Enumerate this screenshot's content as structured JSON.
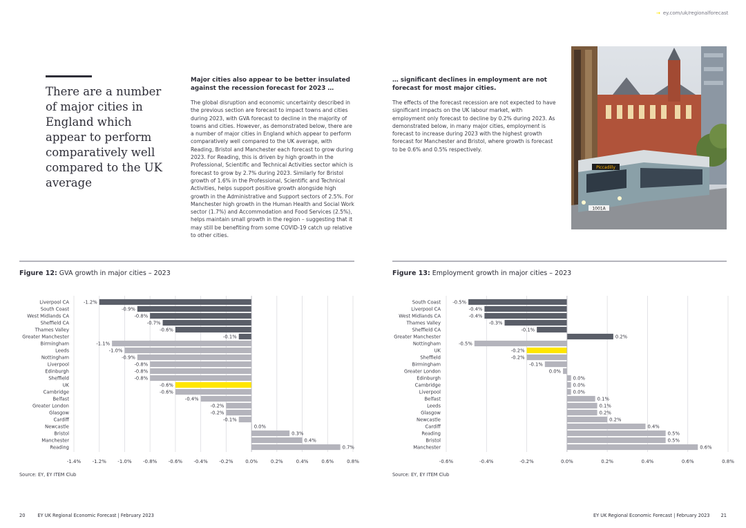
{
  "header": {
    "url": "ey.com/uk/regionalforecast"
  },
  "intro": {
    "quote": "There are a number of major cities in England which appear to perform comparatively well compared to the UK average"
  },
  "column1": {
    "heading": "Major cities also appear to be better insulated against the recession forecast for 2023 …",
    "body": "The global disruption and economic uncertainty described in the previous section are forecast to impact towns and cities during 2023, with GVA forecast to decline in the majority of towns and cities. However, as demonstrated below, there are a number of major cities in England which appear to perform comparatively well compared to the UK average, with Reading, Bristol and Manchester each forecast to grow during 2023. For Reading, this is driven by high growth in the Professional, Scientific and Technical Activities sector which is forecast to grow by 2.7% during 2023. Similarly for Bristol growth of 1.6% in the Professional, Scientific and Technical Activities, helps support positive growth alongside high growth in the Administrative and Support sectors of 2.5%. For Manchester high growth in the Human Health and Social Work sector (1.7%) and Accommodation and Food Services (2.5%), helps maintain small growth in the region – suggesting that it may still be benefiting from some COVID-19 catch up relative to other cities."
  },
  "column2": {
    "heading": "… significant declines in employment are not forecast for most major cities.",
    "body": "The effects of the forecast recession are not expected to have significant impacts on the UK labour market, with employment only forecast to decline by 0.2% during 2023. As demonstrated below, in many major cities, employment is forecast to increase during 2023 with the highest growth forecast for Manchester and Bristol, where growth is forecast to be 0.6% and 0.5% respectively."
  },
  "photo": {
    "tram_sign": "Piccadilly",
    "tram_number": "1001A"
  },
  "figures": {
    "fig12": {
      "label": "Figure 12:",
      "title": "GVA growth in major cities – 2023",
      "source": "Source: EY, EY ITEM Club"
    },
    "fig13": {
      "label": "Figure 13:",
      "title": "Employment growth in major cities – 2023",
      "source": "Source: EY, EY ITEM Club"
    }
  },
  "colors": {
    "dark_bar": "#5a5e68",
    "light_bar": "#b4b4bc",
    "highlight": "#ffe600",
    "accent": "#ffe600"
  },
  "chart_data": [
    {
      "type": "bar",
      "orientation": "horizontal",
      "title": "GVA growth in major cities – 2023",
      "categories": [
        "Liverpool CA",
        "South Coast",
        "West Midlands CA",
        "Sheffield CA",
        "Thames Valley",
        "Greater Manchester",
        "Birmingham",
        "Leeds",
        "Nottingham",
        "Liverpool",
        "Edinburgh",
        "Sheffield",
        "UK",
        "Cambridge",
        "Belfast",
        "Greater London",
        "Glasgow",
        "Cardiff",
        "Newcastle",
        "Bristol",
        "Manchester",
        "Reading"
      ],
      "values": [
        -1.2,
        -0.9,
        -0.8,
        -0.7,
        -0.6,
        -0.1,
        -1.1,
        -1.0,
        -0.9,
        -0.8,
        -0.8,
        -0.8,
        -0.6,
        -0.6,
        -0.4,
        -0.2,
        -0.2,
        -0.1,
        0.0,
        0.3,
        0.4,
        0.7
      ],
      "value_labels": [
        "-1.2%",
        "-0.9%",
        "-0.8%",
        "-0.7%",
        "-0.6%",
        "-0.1%",
        "-1.1%",
        "-1.0%",
        "-0.9%",
        "-0.8%",
        "-0.8%",
        "-0.8%",
        "-0.6%",
        "-0.6%",
        "-0.4%",
        "-0.2%",
        "-0.2%",
        "-0.1%",
        "0.0%",
        "0.3%",
        "0.4%",
        "0.7%"
      ],
      "bar_colors": [
        "dark",
        "dark",
        "dark",
        "dark",
        "dark",
        "dark",
        "light",
        "light",
        "light",
        "light",
        "light",
        "light",
        "highlight",
        "light",
        "light",
        "light",
        "light",
        "light",
        "light",
        "light",
        "light",
        "light"
      ],
      "xlim": [
        -1.4,
        0.8
      ],
      "xticks": [
        -1.4,
        -1.2,
        -1.0,
        -0.8,
        -0.6,
        -0.4,
        -0.2,
        0.0,
        0.2,
        0.4,
        0.6,
        0.8
      ],
      "xtick_labels": [
        "-1.4%",
        "-1.2%",
        "-1.0%",
        "-0.8%",
        "-0.6%",
        "-0.4%",
        "-0.2%",
        "0.0%",
        "0.2%",
        "0.4%",
        "0.6%",
        "0.8%"
      ],
      "grid": true
    },
    {
      "type": "bar",
      "orientation": "horizontal",
      "title": "Employment growth in major cities – 2023",
      "categories": [
        "South Coast",
        "Liverpool CA",
        "West Midlands CA",
        "Thames Valley",
        "Sheffield CA",
        "Greater Manchester",
        "Nottingham",
        "UK",
        "Sheffield",
        "Birmingham",
        "Greater London",
        "Edinburgh",
        "Cambridge",
        "Liverpool",
        "Belfast",
        "Leeds",
        "Glasgow",
        "Newcastle",
        "Cardiff",
        "Reading",
        "Bristol",
        "Manchester"
      ],
      "values": [
        -0.5,
        -0.4,
        -0.4,
        -0.3,
        -0.1,
        0.2,
        -0.5,
        -0.2,
        -0.2,
        -0.1,
        0.0,
        0.0,
        0.0,
        0.0,
        0.1,
        0.1,
        0.2,
        0.2,
        0.4,
        0.5,
        0.5,
        0.6
      ],
      "plot_values": [
        -0.49,
        -0.41,
        -0.41,
        -0.31,
        -0.15,
        0.23,
        -0.46,
        -0.2,
        -0.2,
        -0.11,
        -0.02,
        0.02,
        0.02,
        0.02,
        0.14,
        0.15,
        0.15,
        0.2,
        0.39,
        0.49,
        0.49,
        0.65
      ],
      "value_labels": [
        "-0.5%",
        "-0.4%",
        "-0.4%",
        "-0.3%",
        "-0.1%",
        "0.2%",
        "-0.5%",
        "-0.2%",
        "-0.2%",
        "-0.1%",
        "0.0%",
        "0.0%",
        "0.0%",
        "0.0%",
        "0.1%",
        "0.1%",
        "0.2%",
        "0.2%",
        "0.4%",
        "0.5%",
        "0.5%",
        "0.6%"
      ],
      "bar_colors": [
        "dark",
        "dark",
        "dark",
        "dark",
        "dark",
        "dark",
        "light",
        "highlight",
        "light",
        "light",
        "light",
        "light",
        "light",
        "light",
        "light",
        "light",
        "light",
        "light",
        "light",
        "light",
        "light",
        "light"
      ],
      "xlim": [
        -0.6,
        0.8
      ],
      "xticks": [
        -0.6,
        -0.4,
        -0.2,
        0.0,
        0.2,
        0.4,
        0.6,
        0.8
      ],
      "xtick_labels": [
        "-0.6%",
        "-0.4%",
        "-0.2%",
        "0.0%",
        "0.2%",
        "0.4%",
        "0.6%",
        "0.8%"
      ],
      "grid": true
    }
  ],
  "footer": {
    "left_page": "20",
    "left_title": "EY UK Regional Economic Forecast | February 2023",
    "right_title": "EY UK Regional Economic Forecast | February 2023",
    "right_page": "21"
  }
}
